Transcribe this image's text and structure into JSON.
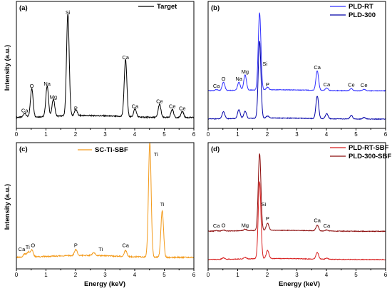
{
  "colors": {
    "target": "#000000",
    "pld_rt": "#3030ff",
    "pld_300": "#0000a8",
    "sc_ti_sbf": "#f39a1a",
    "pld_rt_sbf": "#d81e1e",
    "pld_300_sbf": "#8b0a0a"
  },
  "figure": {
    "ylabel_top": "Intensity (a.u.)",
    "ylabel_bottom": "Intensity (a.u.)",
    "xlabel_left": "Energy (keV)",
    "xlabel_right": "Energy (keV)"
  },
  "chart_data": [
    {
      "panel": "(a)",
      "type": "line",
      "xlabel": "",
      "ylabel": "Intensity (a.u.)",
      "xlim": [
        0,
        6
      ],
      "xticks": [
        "0",
        "1",
        "2",
        "3",
        "4",
        "5",
        "6"
      ],
      "grid": false,
      "legend_position": "top-right",
      "series": [
        {
          "name": "Target",
          "color": "#000000",
          "peaks": [
            [
              0.28,
              0.04
            ],
            [
              0.52,
              0.28
            ],
            [
              1.04,
              0.3
            ],
            [
              1.25,
              0.17
            ],
            [
              1.74,
              1.0
            ],
            [
              2.01,
              0.06
            ],
            [
              3.69,
              0.56
            ],
            [
              4.01,
              0.08
            ],
            [
              4.84,
              0.13
            ],
            [
              5.27,
              0.08
            ],
            [
              5.61,
              0.06
            ]
          ]
        }
      ],
      "annotations": [
        {
          "text": "Ca",
          "x": 0.28,
          "y": 0.04
        },
        {
          "text": "O",
          "x": 0.52,
          "y": 0.28
        },
        {
          "text": "Na",
          "x": 1.04,
          "y": 0.3
        },
        {
          "text": "Mg",
          "x": 1.25,
          "y": 0.17
        },
        {
          "text": "Si",
          "x": 1.74,
          "y": 1.0
        },
        {
          "text": "P",
          "x": 2.01,
          "y": 0.06
        },
        {
          "text": "Ca",
          "x": 3.69,
          "y": 0.56
        },
        {
          "text": "Ca",
          "x": 4.01,
          "y": 0.08
        },
        {
          "text": "Ce",
          "x": 4.84,
          "y": 0.13
        },
        {
          "text": "Ce",
          "x": 5.27,
          "y": 0.08
        },
        {
          "text": "Ce",
          "x": 5.61,
          "y": 0.06
        }
      ]
    },
    {
      "panel": "(b)",
      "type": "line",
      "xlabel": "",
      "ylabel": "",
      "xlim": [
        0,
        6
      ],
      "xticks": [
        "0",
        "1",
        "2",
        "3",
        "4",
        "5",
        "6"
      ],
      "grid": false,
      "legend_position": "top-right",
      "series": [
        {
          "name": "PLD-RT",
          "color": "#3030ff",
          "offset": 0.55,
          "peaks": [
            [
              0.28,
              0.02
            ],
            [
              0.52,
              0.16
            ],
            [
              1.04,
              0.16
            ],
            [
              1.25,
              0.3
            ],
            [
              1.74,
              1.5
            ],
            [
              2.01,
              0.05
            ],
            [
              3.69,
              0.38
            ],
            [
              4.01,
              0.05
            ],
            [
              4.84,
              0.04
            ],
            [
              5.27,
              0.03
            ]
          ]
        },
        {
          "name": "PLD-300",
          "color": "#0000a8",
          "offset": 0.0,
          "peaks": [
            [
              0.52,
              0.14
            ],
            [
              1.04,
              0.17
            ],
            [
              1.25,
              0.14
            ],
            [
              1.74,
              1.5
            ],
            [
              2.01,
              0.04
            ],
            [
              3.69,
              0.44
            ],
            [
              4.01,
              0.1
            ],
            [
              4.84,
              0.07
            ],
            [
              5.27,
              0.03
            ]
          ]
        }
      ],
      "annotations": [
        {
          "text": "Ca",
          "x": 0.28,
          "y": 0.57
        },
        {
          "text": "O",
          "x": 0.52,
          "y": 0.71
        },
        {
          "text": "Na",
          "x": 1.04,
          "y": 0.71
        },
        {
          "text": "Mg",
          "x": 1.25,
          "y": 0.85
        },
        {
          "text": "Si",
          "x": 1.92,
          "y": 1.0
        },
        {
          "text": "P",
          "x": 2.01,
          "y": 0.6
        },
        {
          "text": "Ca",
          "x": 3.69,
          "y": 0.93
        },
        {
          "text": "Ca",
          "x": 4.01,
          "y": 0.6
        },
        {
          "text": "Ce",
          "x": 4.84,
          "y": 0.59
        },
        {
          "text": "Ce",
          "x": 5.27,
          "y": 0.58
        }
      ]
    },
    {
      "panel": "(c)",
      "type": "line",
      "xlabel": "Energy (keV)",
      "ylabel": "Intensity (a.u.)",
      "xlim": [
        0,
        6
      ],
      "xticks": [
        "0",
        "1",
        "2",
        "3",
        "4",
        "5",
        "6"
      ],
      "grid": false,
      "legend_position": "top-center",
      "series": [
        {
          "name": "SC-Ti-SBF",
          "color": "#f39a1a",
          "peaks": [
            [
              0.28,
              0.03
            ],
            [
              0.4,
              0.05
            ],
            [
              0.52,
              0.07
            ],
            [
              2.01,
              0.06
            ],
            [
              2.62,
              0.03
            ],
            [
              3.69,
              0.06
            ],
            [
              4.51,
              1.15
            ],
            [
              4.93,
              0.47
            ]
          ]
        }
      ],
      "annotations": [
        {
          "text": "Ca",
          "x": 0.18,
          "y": 0.05
        },
        {
          "text": "Ti",
          "x": 0.38,
          "y": 0.07
        },
        {
          "text": "O",
          "x": 0.56,
          "y": 0.09
        },
        {
          "text": "P",
          "x": 2.01,
          "y": 0.09
        },
        {
          "text": "Ti",
          "x": 2.85,
          "y": 0.05
        },
        {
          "text": "Ca",
          "x": 3.69,
          "y": 0.09
        },
        {
          "text": "Ti",
          "x": 4.72,
          "y": 1.0
        },
        {
          "text": "Ti",
          "x": 4.93,
          "y": 0.5
        }
      ]
    },
    {
      "panel": "(d)",
      "type": "line",
      "xlabel": "Energy (keV)",
      "ylabel": "",
      "xlim": [
        0,
        6
      ],
      "xticks": [
        "0",
        "1",
        "2",
        "3",
        "4",
        "5",
        "6"
      ],
      "grid": false,
      "legend_position": "top-right",
      "series": [
        {
          "name": "PLD-RT-SBF",
          "color": "#d81e1e",
          "offset": 0.0,
          "peaks": [
            [
              0.52,
              0.03
            ],
            [
              1.25,
              0.03
            ],
            [
              1.74,
              1.5
            ],
            [
              2.01,
              0.16
            ],
            [
              3.69,
              0.13
            ],
            [
              4.01,
              0.02
            ]
          ]
        },
        {
          "name": "PLD-300-SBF",
          "color": "#8b0a0a",
          "offset": 0.55,
          "peaks": [
            [
              0.28,
              0.01
            ],
            [
              0.52,
              0.02
            ],
            [
              1.25,
              0.03
            ],
            [
              1.74,
              1.5
            ],
            [
              2.01,
              0.14
            ],
            [
              3.69,
              0.11
            ],
            [
              4.01,
              0.02
            ]
          ]
        }
      ],
      "annotations": [
        {
          "text": "Ca",
          "x": 0.28,
          "y": 0.58
        },
        {
          "text": "O",
          "x": 0.52,
          "y": 0.59
        },
        {
          "text": "Mg",
          "x": 1.25,
          "y": 0.59
        },
        {
          "text": "Si",
          "x": 1.88,
          "y": 1.0
        },
        {
          "text": "P",
          "x": 2.01,
          "y": 0.72
        },
        {
          "text": "Ca",
          "x": 3.69,
          "y": 0.69
        },
        {
          "text": "Ca",
          "x": 4.01,
          "y": 0.58
        }
      ]
    }
  ]
}
